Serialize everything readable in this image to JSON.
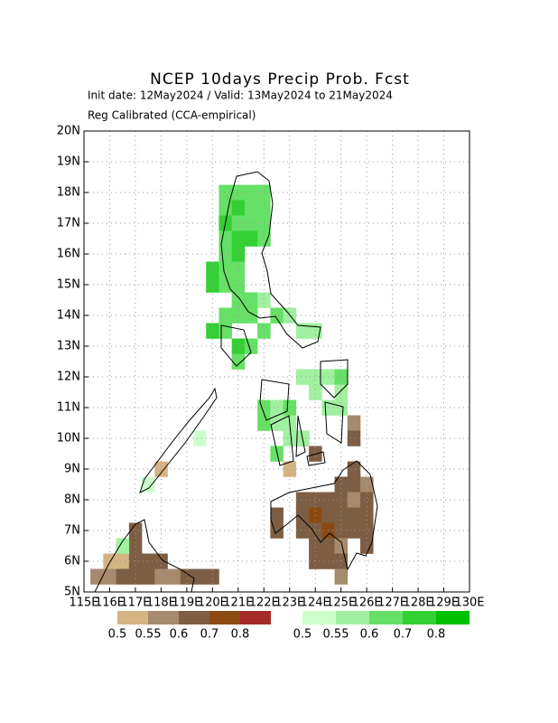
{
  "chart_data": {
    "type": "map",
    "title": "NCEP 10days Precip Prob. Fcst",
    "subtitle": "Init date: 12May2024 / Valid: 13May2024 to 21May2024",
    "note": "Reg Calibrated (CCA-empirical)",
    "xlim": [
      115,
      130
    ],
    "ylim": [
      5,
      20
    ],
    "xticks": [
      {
        "value": 115,
        "label": "115E"
      },
      {
        "value": 116,
        "label": "116E"
      },
      {
        "value": 117,
        "label": "117E"
      },
      {
        "value": 118,
        "label": "118E"
      },
      {
        "value": 119,
        "label": "119E"
      },
      {
        "value": 120,
        "label": "120E"
      },
      {
        "value": 121,
        "label": "121E"
      },
      {
        "value": 122,
        "label": "122E"
      },
      {
        "value": 123,
        "label": "123E"
      },
      {
        "value": 124,
        "label": "124E"
      },
      {
        "value": 125,
        "label": "125E"
      },
      {
        "value": 126,
        "label": "126E"
      },
      {
        "value": 127,
        "label": "127E"
      },
      {
        "value": 128,
        "label": "128E"
      },
      {
        "value": 129,
        "label": "129E"
      },
      {
        "value": 130,
        "label": "130E"
      }
    ],
    "yticks": [
      {
        "value": 5,
        "label": "5N"
      },
      {
        "value": 6,
        "label": "6N"
      },
      {
        "value": 7,
        "label": "7N"
      },
      {
        "value": 8,
        "label": "8N"
      },
      {
        "value": 9,
        "label": "9N"
      },
      {
        "value": 10,
        "label": "10N"
      },
      {
        "value": 11,
        "label": "11N"
      },
      {
        "value": 12,
        "label": "12N"
      },
      {
        "value": 13,
        "label": "13N"
      },
      {
        "value": 14,
        "label": "14N"
      },
      {
        "value": 15,
        "label": "15N"
      },
      {
        "value": 16,
        "label": "16N"
      },
      {
        "value": 17,
        "label": "17N"
      },
      {
        "value": 18,
        "label": "18N"
      },
      {
        "value": 19,
        "label": "19N"
      },
      {
        "value": 20,
        "label": "20N"
      }
    ],
    "grid": true,
    "series": [
      {
        "levels": [
          0.5,
          0.55,
          0.6,
          0.7,
          0.8
        ],
        "colors": [
          "#d4b483",
          "#a68a6d",
          "#7d5e44",
          "#8b4a12",
          "#a52a2a"
        ],
        "lon": [
          125.5,
          125,
          125.5,
          126,
          123.5,
          124,
          124.5,
          125,
          125.5,
          126,
          122.5,
          123.5,
          124,
          124.5,
          125,
          125.5,
          126,
          122.5,
          123.5,
          124,
          124.5,
          125,
          125.5,
          126,
          124,
          124.5,
          125,
          126,
          124,
          124.5,
          125,
          125,
          125.5,
          123.5,
          125.5,
          124,
          123,
          118,
          117,
          116.5,
          117,
          116,
          116.5,
          117,
          117.5,
          118,
          115.5,
          116,
          116.5,
          117,
          117.5,
          118,
          118.5,
          119,
          119.5,
          120
        ],
        "lat": [
          9,
          8.5,
          8.5,
          8.5,
          8,
          8,
          8,
          8,
          8,
          8,
          7.5,
          7.5,
          7.5,
          7.5,
          7.5,
          7.5,
          7.5,
          7,
          7,
          7,
          7,
          7,
          7,
          7,
          6.5,
          6.5,
          6.5,
          6.5,
          6,
          6,
          6,
          5.5,
          10.5,
          10,
          10,
          9.5,
          9,
          9,
          7,
          6.5,
          6.5,
          6,
          6,
          6,
          6,
          6,
          5.5,
          5.5,
          5.5,
          5.5,
          5.5,
          5.5,
          5.5,
          5.5,
          5.5,
          5.5
        ],
        "prob": [
          0.6,
          0.6,
          0.6,
          0.55,
          0.6,
          0.6,
          0.6,
          0.6,
          0.55,
          0.6,
          0.6,
          0.6,
          0.7,
          0.6,
          0.6,
          0.6,
          0.6,
          0.6,
          0.6,
          0.6,
          0.7,
          0.6,
          0.6,
          0.6,
          0.6,
          0.6,
          0.55,
          0.6,
          0.6,
          0.6,
          0.6,
          0.55,
          0.55,
          0.6,
          0.6,
          0.6,
          0.5,
          0.5,
          0.6,
          0.5,
          0.6,
          0.5,
          0.5,
          0.6,
          0.6,
          0.6,
          0.55,
          0.55,
          0.6,
          0.6,
          0.6,
          0.55,
          0.55,
          0.6,
          0.6,
          0.6
        ]
      },
      {
        "levels": [
          0.5,
          0.55,
          0.6,
          0.7,
          0.8
        ],
        "colors": [
          "#ccffcc",
          "#a0f0a0",
          "#66e066",
          "#33d033",
          "#00c000"
        ],
        "lon": [
          120.5,
          121,
          121.5,
          122,
          120.5,
          121,
          121.5,
          122,
          120.5,
          121,
          121.5,
          122,
          120.5,
          121,
          121.5,
          122,
          120.5,
          121,
          120,
          120.5,
          121,
          120,
          120.5,
          121,
          121,
          121.5,
          122,
          120.5,
          121,
          121.5,
          122.5,
          123,
          120,
          120.5,
          122,
          123.5,
          124,
          121,
          121.5,
          121,
          123.5,
          124,
          124.5,
          125,
          124,
          125,
          122,
          122.5,
          123,
          124.5,
          125,
          122,
          122.5,
          123,
          123,
          123.5,
          122.5,
          119.5,
          117.5,
          116.5
        ],
        "lat": [
          18,
          18,
          18,
          18,
          17.5,
          17.5,
          17.5,
          17.5,
          17,
          17,
          17,
          17,
          16.5,
          16.5,
          16.5,
          16.5,
          16,
          16,
          15.5,
          15.5,
          15.5,
          15,
          15,
          15,
          14.5,
          14.5,
          14.5,
          14,
          14,
          14,
          14,
          14,
          13.5,
          13.5,
          13.5,
          13.5,
          13.5,
          13,
          13,
          12.5,
          12,
          12,
          12,
          12,
          11.5,
          11.5,
          11,
          11,
          11,
          11,
          11,
          10.5,
          10.5,
          10.5,
          10,
          10,
          9.5,
          10,
          8.5,
          6.5
        ],
        "prob": [
          0.6,
          0.65,
          0.6,
          0.65,
          0.65,
          0.7,
          0.6,
          0.6,
          0.7,
          0.65,
          0.65,
          0.6,
          0.65,
          0.7,
          0.7,
          0.65,
          0.65,
          0.7,
          0.7,
          0.65,
          0.6,
          0.7,
          0.65,
          0.65,
          0.6,
          0.6,
          0.55,
          0.65,
          0.65,
          0.6,
          0.65,
          0.55,
          0.7,
          0.65,
          0.65,
          0.55,
          0.55,
          0.7,
          0.6,
          0.65,
          0.55,
          0.55,
          0.55,
          0.6,
          0.55,
          0.55,
          0.6,
          0.55,
          0.6,
          0.55,
          0.55,
          0.6,
          0.55,
          0.55,
          0.55,
          0.55,
          0.6,
          0.5,
          0.5,
          0.55
        ]
      }
    ]
  }
}
